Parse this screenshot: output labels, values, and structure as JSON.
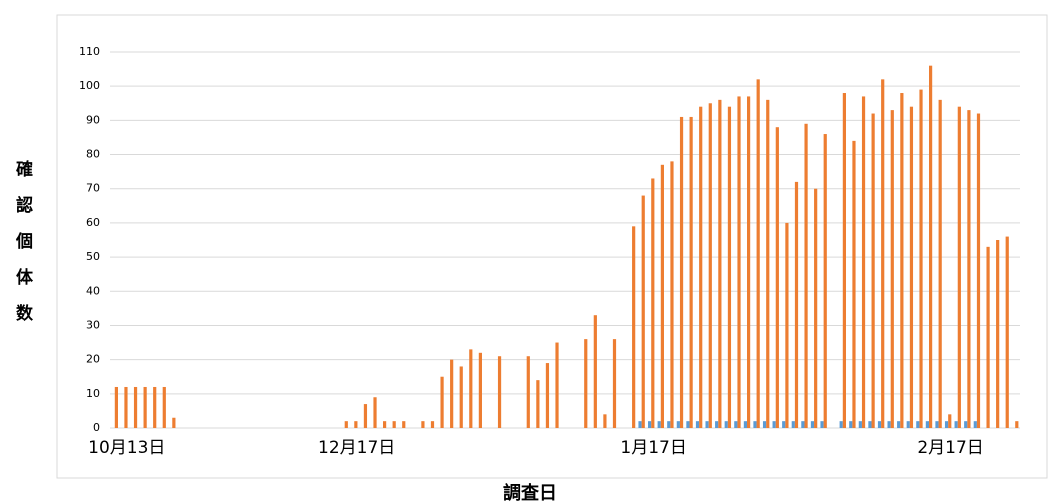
{
  "chart_data": {
    "type": "bar",
    "y_label": "確認個体数",
    "x_label": "調査日",
    "categories": [
      "10月13日",
      null,
      null,
      null,
      null,
      null,
      null,
      null,
      null,
      null,
      null,
      null,
      null,
      null,
      null,
      null,
      null,
      null,
      null,
      null,
      null,
      null,
      null,
      null,
      "12月17日",
      null,
      null,
      null,
      null,
      null,
      null,
      null,
      null,
      null,
      null,
      null,
      null,
      null,
      null,
      null,
      null,
      null,
      null,
      null,
      null,
      null,
      null,
      null,
      null,
      null,
      null,
      null,
      null,
      null,
      null,
      "1月17日",
      null,
      null,
      null,
      null,
      null,
      null,
      null,
      null,
      null,
      null,
      null,
      null,
      null,
      null,
      null,
      null,
      null,
      null,
      null,
      null,
      null,
      null,
      null,
      null,
      null,
      null,
      null,
      null,
      null,
      null,
      "2月17日",
      null,
      null,
      null,
      null,
      null,
      null,
      null,
      null
    ],
    "series": [
      {
        "color": "#5b9bd5",
        "values": [
          null,
          null,
          null,
          null,
          null,
          null,
          null,
          null,
          null,
          null,
          null,
          null,
          null,
          null,
          null,
          null,
          null,
          null,
          null,
          null,
          null,
          null,
          null,
          null,
          null,
          null,
          null,
          null,
          null,
          null,
          null,
          null,
          null,
          null,
          null,
          null,
          null,
          null,
          null,
          null,
          null,
          null,
          null,
          null,
          null,
          null,
          null,
          null,
          null,
          null,
          null,
          null,
          null,
          null,
          null,
          2,
          2,
          2,
          2,
          2,
          2,
          2,
          2,
          2,
          2,
          2,
          2,
          2,
          2,
          2,
          2,
          2,
          2,
          2,
          2,
          null,
          2,
          2,
          2,
          2,
          2,
          2,
          2,
          2,
          2,
          2,
          2,
          2,
          2,
          2,
          2,
          null,
          null,
          null,
          null
        ]
      },
      {
        "color": "#ed7d31",
        "values": [
          12,
          12,
          12,
          12,
          12,
          12,
          3,
          null,
          null,
          null,
          null,
          null,
          null,
          null,
          null,
          null,
          null,
          null,
          null,
          null,
          null,
          null,
          null,
          null,
          2,
          2,
          7,
          9,
          2,
          2,
          2,
          null,
          2,
          2,
          15,
          20,
          18,
          23,
          22,
          null,
          21,
          null,
          null,
          21,
          14,
          19,
          25,
          null,
          null,
          26,
          33,
          4,
          26,
          null,
          59,
          68,
          73,
          77,
          78,
          91,
          91,
          94,
          95,
          96,
          94,
          97,
          97,
          102,
          96,
          88,
          60,
          72,
          89,
          70,
          86,
          null,
          98,
          84,
          97,
          92,
          102,
          93,
          98,
          94,
          99,
          106,
          96,
          4,
          94,
          93,
          92,
          53,
          55,
          56,
          2
        ]
      }
    ],
    "ylim": [
      0,
      110
    ],
    "yticks": [
      0,
      10,
      20,
      30,
      40,
      50,
      60,
      70,
      80,
      90,
      100,
      110
    ],
    "grid": true
  }
}
